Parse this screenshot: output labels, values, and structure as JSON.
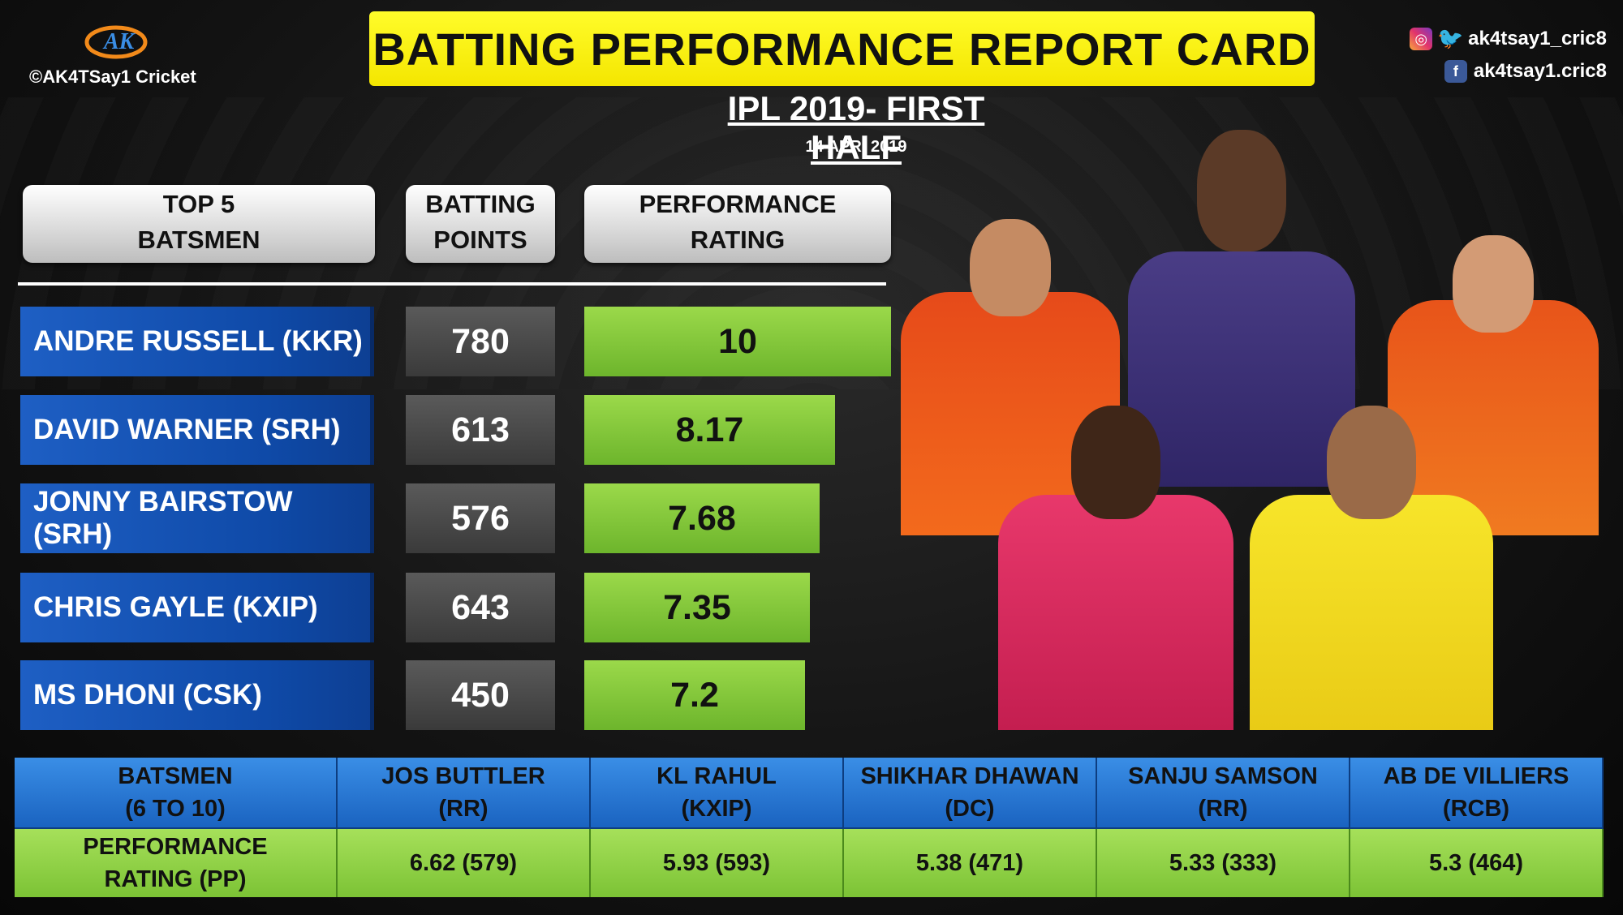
{
  "brand": {
    "logo_text": "AK",
    "copyright": "©AK4TSay1 Cricket"
  },
  "social": {
    "twitter_instagram": "ak4tsay1_cric8",
    "facebook": "ak4tsay1.cric8"
  },
  "title": "BATTING PERFORMANCE REPORT CARD",
  "subtitle": "IPL 2019- FIRST HALF",
  "date": "14 APR, 2019",
  "headers": {
    "batsmen": "TOP 5\nBATSMEN",
    "points": "BATTING\nPOINTS",
    "rating": "PERFORMANCE\nRATING"
  },
  "chart_data": {
    "type": "bar",
    "categories": [
      "ANDRE RUSSELL (KKR)",
      "DAVID WARNER (SRH)",
      "JONNY BAIRSTOW (SRH)",
      "CHRIS GAYLE (KXIP)",
      "MS DHONI (CSK)"
    ],
    "batting_points": [
      "780",
      "613",
      "576",
      "643",
      "450"
    ],
    "values": [
      "10",
      "8.17",
      "7.68",
      "7.35",
      "7.2"
    ],
    "xlim": [
      0,
      10
    ]
  },
  "bottom_table": {
    "header_label": "BATSMEN\n(6 TO 10)",
    "row_label": "PERFORMANCE\nRATING (PP)",
    "players": [
      {
        "name": "JOS BUTTLER\n(RR)",
        "rating": "6.62 (579)"
      },
      {
        "name": "KL RAHUL\n(KXIP)",
        "rating": "5.93 (593)"
      },
      {
        "name": "SHIKHAR DHAWAN\n(DC)",
        "rating": "5.38 (471)"
      },
      {
        "name": "SANJU SAMSON\n(RR)",
        "rating": "5.33 (333)"
      },
      {
        "name": "AB DE VILLIERS\n(RCB)",
        "rating": "5.3 (464)"
      }
    ]
  },
  "colors": {
    "title_bar": "#fffc2a",
    "name_cell": "#1e5fc4",
    "rating_bar": "#8acb3f",
    "points_cell": "#4a4a4a"
  }
}
